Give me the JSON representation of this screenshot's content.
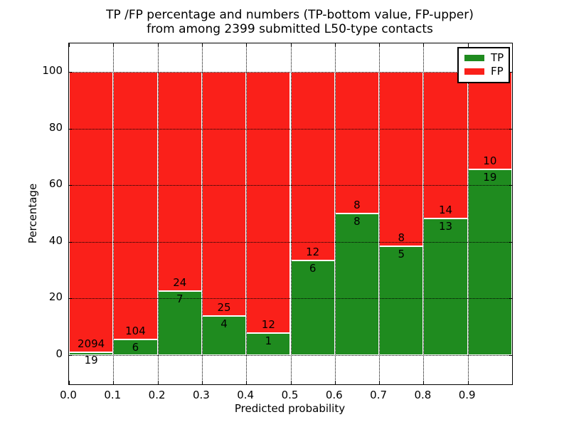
{
  "title": {
    "line1": "TP /FP percentage and numbers (TP-bottom value, FP-upper)",
    "line2": "from among 2399 submitted L50-type contacts"
  },
  "chart_data": {
    "type": "bar",
    "stacked": true,
    "title": "TP /FP percentage and numbers (TP-bottom value, FP-upper)\nfrom among 2399 submitted L50-type contacts",
    "xlabel": "Predicted probability",
    "ylabel": "Percentage",
    "grid": "dotted",
    "xlim": [
      0.0,
      1.0
    ],
    "ylim": [
      -10.3,
      110.1
    ],
    "x_ticks": [
      "0.0",
      "0.1",
      "0.2",
      "0.3",
      "0.4",
      "0.5",
      "0.6",
      "0.7",
      "0.8",
      "0.9"
    ],
    "y_ticks": [
      0,
      20,
      40,
      60,
      80,
      100
    ],
    "annotation_rule": "TP count printed just below segment boundary, FP count just above; bars normalized to 100%",
    "bins": [
      {
        "range": "0.0-0.1",
        "tp": 19,
        "fp": 2094,
        "tp_pct": 0.9
      },
      {
        "range": "0.1-0.2",
        "tp": 6,
        "fp": 104,
        "tp_pct": 5.45
      },
      {
        "range": "0.2-0.3",
        "tp": 7,
        "fp": 24,
        "tp_pct": 22.58
      },
      {
        "range": "0.3-0.4",
        "tp": 4,
        "fp": 25,
        "tp_pct": 13.79
      },
      {
        "range": "0.4-0.5",
        "tp": 1,
        "fp": 12,
        "tp_pct": 7.69
      },
      {
        "range": "0.5-0.6",
        "tp": 6,
        "fp": 12,
        "tp_pct": 33.33
      },
      {
        "range": "0.6-0.7",
        "tp": 8,
        "fp": 8,
        "tp_pct": 50.0
      },
      {
        "range": "0.7-0.8",
        "tp": 5,
        "fp": 8,
        "tp_pct": 38.46
      },
      {
        "range": "0.8-0.9",
        "tp": 13,
        "fp": 14,
        "tp_pct": 48.15
      },
      {
        "range": "0.9-1.0",
        "tp": 19,
        "fp": 10,
        "tp_pct": 65.52
      }
    ],
    "legend": {
      "position": "upper right",
      "items": [
        {
          "label": "TP",
          "color": "#1f8b1f"
        },
        {
          "label": "FP",
          "color": "#fa201a"
        }
      ]
    }
  }
}
